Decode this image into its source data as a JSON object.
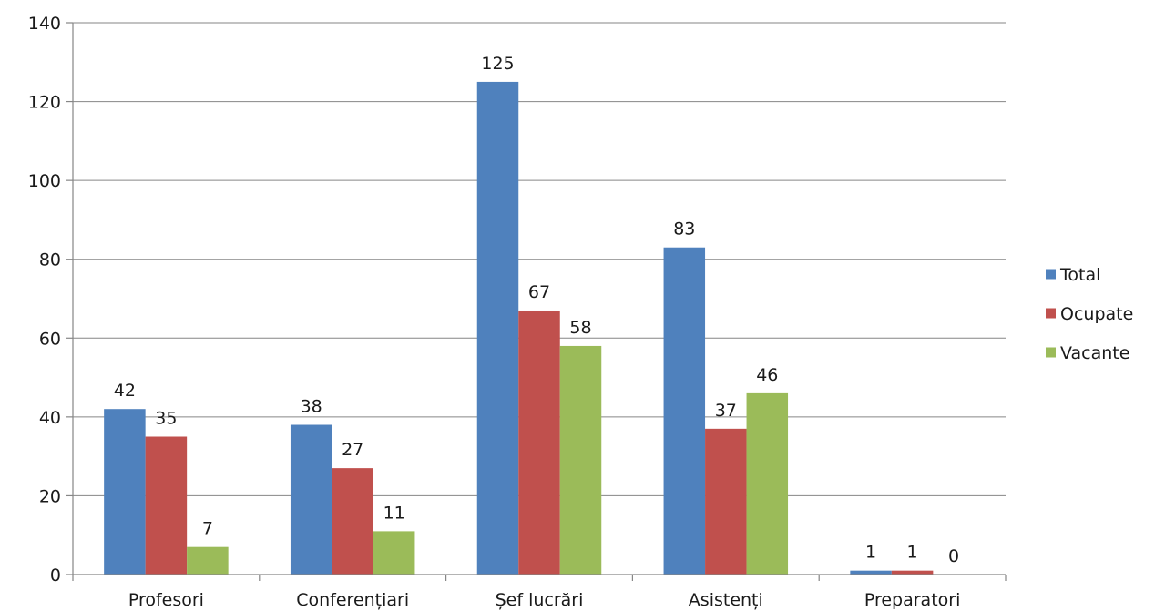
{
  "chart_data": {
    "type": "bar",
    "title": "",
    "xlabel": "",
    "ylabel": "",
    "categories": [
      "Profesori",
      "Conferențiari",
      "Șef lucrări",
      "Asistenți",
      "Preparatori"
    ],
    "series": [
      {
        "name": "Total",
        "color": "#4F81BD",
        "values": [
          42,
          38,
          125,
          83,
          1
        ]
      },
      {
        "name": "Ocupate",
        "color": "#C0504D",
        "values": [
          35,
          27,
          67,
          37,
          1
        ]
      },
      {
        "name": "Vacante",
        "color": "#9BBB59",
        "values": [
          7,
          11,
          58,
          46,
          0
        ]
      }
    ],
    "ylim": [
      0,
      140
    ],
    "yticks": [
      0,
      20,
      40,
      60,
      80,
      100,
      120,
      140
    ],
    "grid": true,
    "legend_position": "right",
    "data_labels": true
  }
}
